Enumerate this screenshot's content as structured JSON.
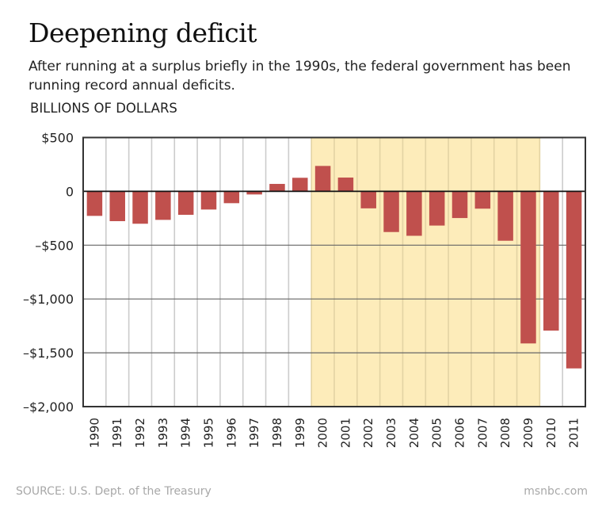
{
  "header": {
    "title": "Deepening deficit",
    "subtitle": "After running at a surplus briefly in the 1990s, the federal government has been running record annual deficits.",
    "units": "BILLIONS OF DOLLARS"
  },
  "footer": {
    "source": "SOURCE: U.S. Dept. of the Treasury",
    "credit": "msnbc.com"
  },
  "colors": {
    "bar": "#c0504d",
    "highlight": "#fdecba",
    "highlight_border": "#e3d3a3",
    "axis": "#333333",
    "gridline_major": "#666666",
    "gridline_minor": "#cccccc"
  },
  "chart_data": {
    "type": "bar",
    "title": "Deepening deficit",
    "subtitle": "After running at a surplus briefly in the 1990s, the federal government has been running record annual deficits.",
    "xlabel": "",
    "ylabel": "BILLIONS OF DOLLARS",
    "ylim": [
      -2000,
      500
    ],
    "yticks": [
      500,
      0,
      -500,
      -1000,
      -1500,
      -2000
    ],
    "ytick_labels": [
      "$500",
      "0",
      "–$500",
      "–$1,000",
      "–$1,500",
      "–$2,000"
    ],
    "grid": true,
    "categories": [
      "1990",
      "1991",
      "1992",
      "1993",
      "1994",
      "1995",
      "1996",
      "1997",
      "1998",
      "1999",
      "2000",
      "2001",
      "2002",
      "2003",
      "2004",
      "2005",
      "2006",
      "2007",
      "2008",
      "2009",
      "2010",
      "2011"
    ],
    "values": [
      -228,
      -277,
      -301,
      -265,
      -218,
      -169,
      -110,
      -29,
      69,
      126,
      236,
      128,
      -158,
      -378,
      -413,
      -318,
      -248,
      -161,
      -459,
      -1413,
      -1294,
      -1645
    ],
    "highlight_range": [
      "2000",
      "2009"
    ],
    "source": "SOURCE: U.S. Dept. of the Treasury"
  }
}
